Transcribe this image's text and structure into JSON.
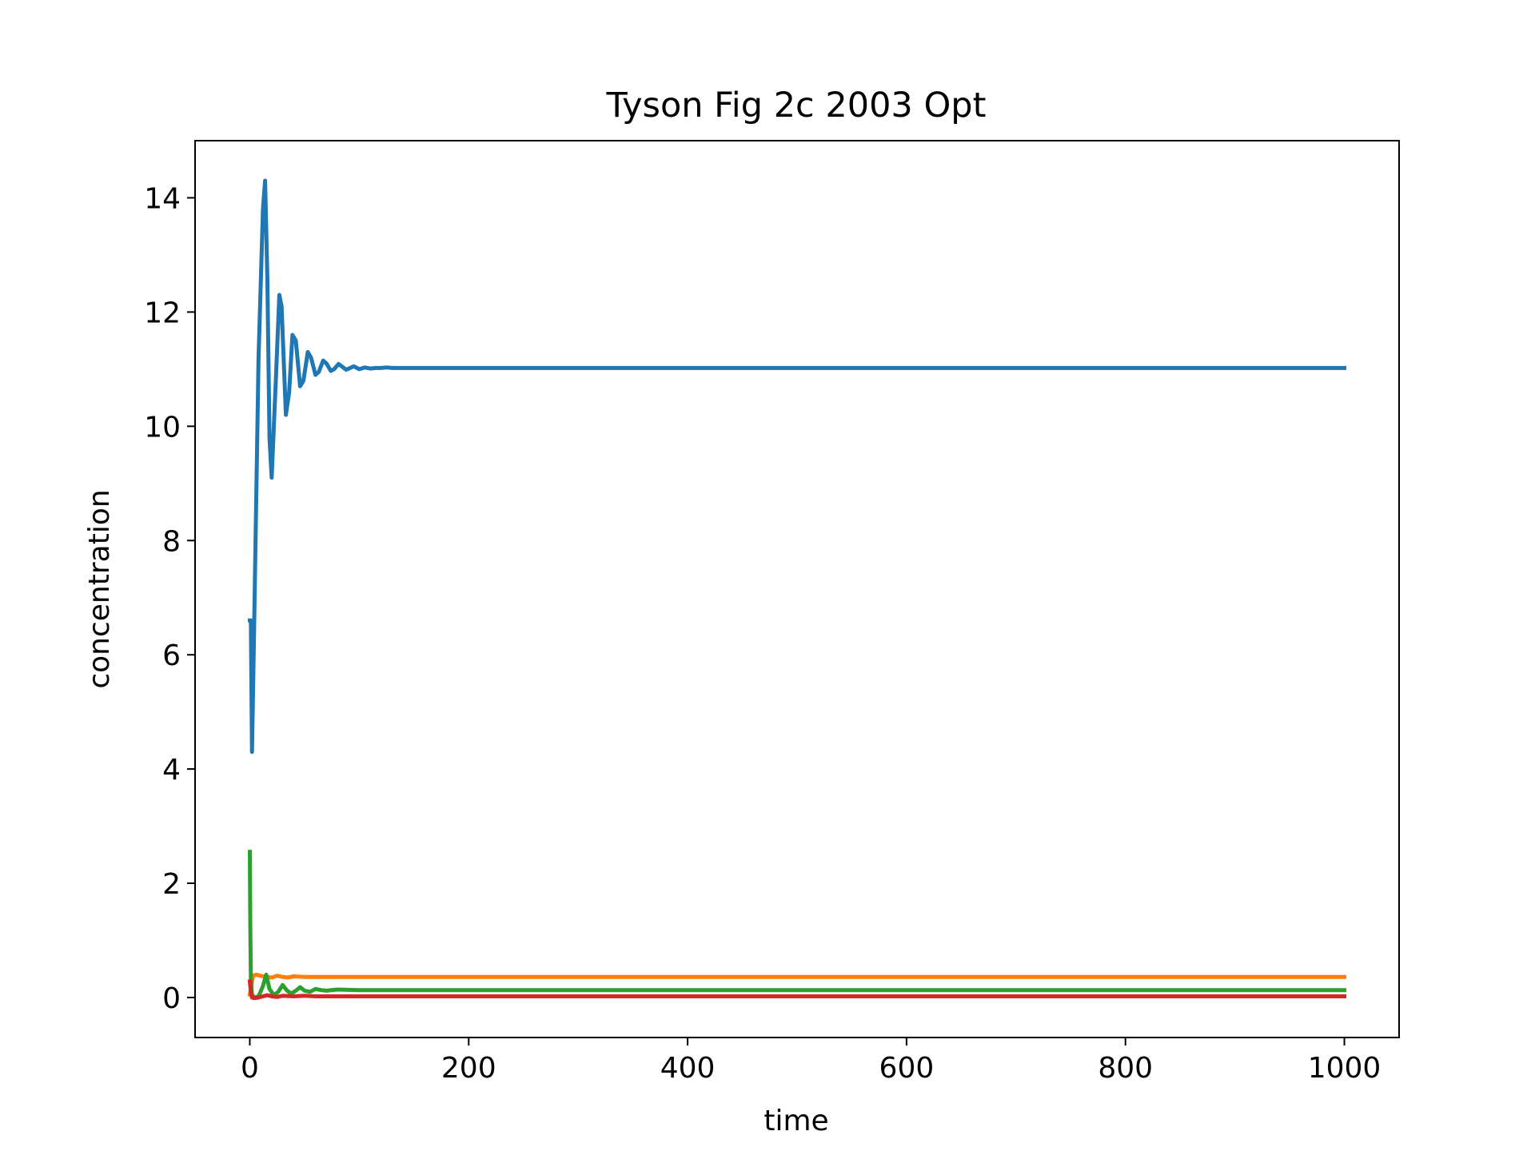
{
  "chart_data": {
    "type": "line",
    "title": "Tyson Fig 2c 2003 Opt",
    "xlabel": "time",
    "ylabel": "concentration",
    "xlim": [
      -50,
      1050
    ],
    "ylim": [
      -0.7,
      15
    ],
    "xticks": [
      0,
      200,
      400,
      600,
      800,
      1000
    ],
    "yticks": [
      0,
      2,
      4,
      6,
      8,
      10,
      12,
      14
    ],
    "grid": false,
    "legend": "none",
    "series": [
      {
        "color": "#1f77b4",
        "x": [
          0,
          1,
          2,
          4,
          8,
          12,
          14,
          16,
          18,
          20,
          24,
          27,
          29,
          33,
          36,
          39,
          42,
          46,
          49,
          53,
          56,
          60,
          63,
          67,
          70,
          74,
          77,
          81,
          84,
          88,
          95,
          100,
          105,
          110,
          115,
          120,
          125,
          130,
          140,
          150,
          200,
          400,
          600,
          800,
          1000
        ],
        "y": [
          6.6,
          6.6,
          4.3,
          6.5,
          11.2,
          13.8,
          14.3,
          12.6,
          9.8,
          9.1,
          10.9,
          12.3,
          12.1,
          10.2,
          10.6,
          11.6,
          11.5,
          10.7,
          10.8,
          11.3,
          11.2,
          10.9,
          10.95,
          11.15,
          11.1,
          10.97,
          11.0,
          11.09,
          11.05,
          10.99,
          11.05,
          11.0,
          11.03,
          11.01,
          11.02,
          11.02,
          11.03,
          11.02,
          11.02,
          11.02,
          11.02,
          11.02,
          11.02,
          11.02,
          11.02
        ]
      },
      {
        "color": "#ff7f0e",
        "x": [
          0,
          3,
          6,
          10,
          15,
          20,
          25,
          30,
          35,
          40,
          50,
          60,
          80,
          100,
          200,
          400,
          600,
          800,
          1000
        ],
        "y": [
          0.05,
          0.38,
          0.4,
          0.38,
          0.36,
          0.35,
          0.38,
          0.36,
          0.35,
          0.37,
          0.36,
          0.36,
          0.36,
          0.36,
          0.36,
          0.36,
          0.36,
          0.36,
          0.36
        ]
      },
      {
        "color": "#2ca02c",
        "x": [
          0,
          0.5,
          1,
          2,
          4,
          8,
          12,
          15,
          18,
          22,
          26,
          30,
          34,
          38,
          42,
          46,
          50,
          55,
          60,
          65,
          70,
          80,
          100,
          200,
          400,
          600,
          800,
          1000
        ],
        "y": [
          2.55,
          1.2,
          0.3,
          0.05,
          0.0,
          0.02,
          0.2,
          0.4,
          0.15,
          0.04,
          0.1,
          0.22,
          0.12,
          0.07,
          0.12,
          0.18,
          0.12,
          0.1,
          0.15,
          0.13,
          0.12,
          0.14,
          0.13,
          0.13,
          0.13,
          0.13,
          0.13,
          0.13
        ]
      },
      {
        "color": "#d62728",
        "x": [
          0,
          1,
          2,
          4,
          8,
          12,
          16,
          20,
          25,
          30,
          40,
          50,
          60,
          100,
          200,
          400,
          600,
          800,
          1000
        ],
        "y": [
          0.28,
          0.1,
          0.0,
          -0.01,
          0.0,
          0.02,
          0.04,
          0.02,
          0.01,
          0.03,
          0.02,
          0.03,
          0.02,
          0.02,
          0.02,
          0.02,
          0.02,
          0.02,
          0.02
        ]
      }
    ]
  }
}
